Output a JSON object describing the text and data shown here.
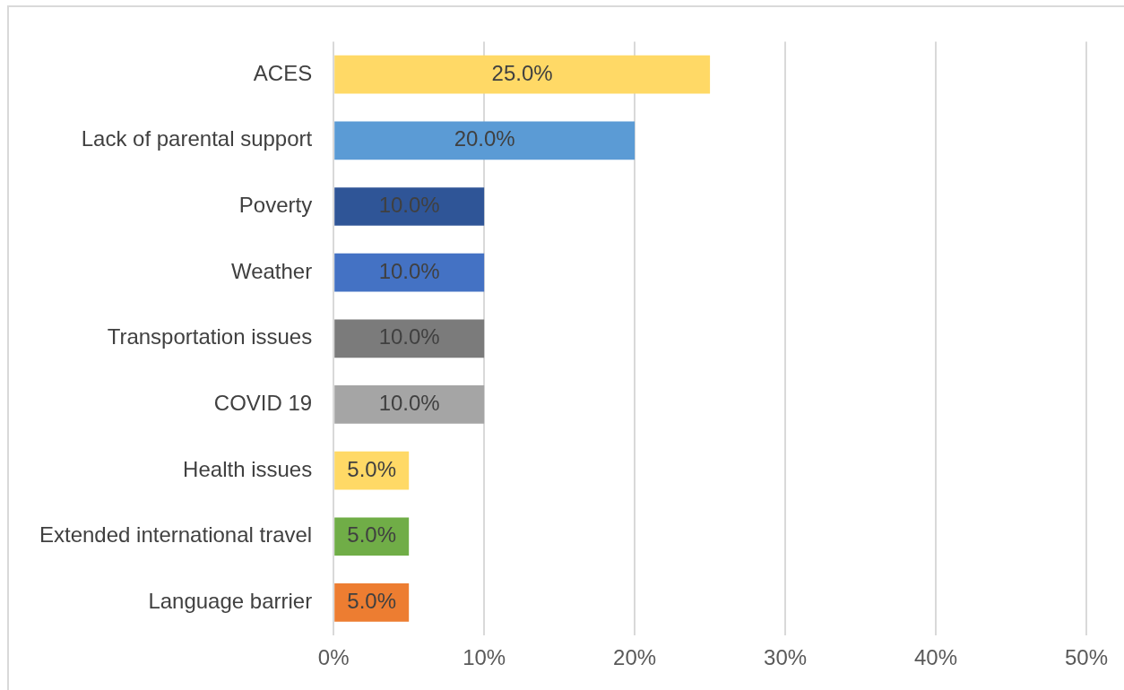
{
  "chart_data": {
    "type": "bar",
    "orientation": "horizontal",
    "categories": [
      "ACES",
      "Lack of parental support",
      "Poverty",
      "Weather",
      "Transportation issues",
      "COVID 19",
      "Health issues",
      "Extended international travel",
      "Language barrier"
    ],
    "values": [
      25,
      20,
      10,
      10,
      10,
      10,
      5,
      5,
      5
    ],
    "colors": [
      "#ffd966",
      "#5b9bd5",
      "#2f5597",
      "#4472c4",
      "#7b7b7b",
      "#a5a5a5",
      "#ffd966",
      "#70ad47",
      "#ed7d31"
    ],
    "value_labels": [
      "25.0%",
      "20.0%",
      "10.0%",
      "10.0%",
      "10.0%",
      "10.0%",
      "5.0%",
      "5.0%",
      "5.0%"
    ],
    "xlim": [
      0,
      50
    ],
    "xticks": [
      {
        "value": 0,
        "label": "0%"
      },
      {
        "value": 10,
        "label": "10%"
      },
      {
        "value": 20,
        "label": "20%"
      },
      {
        "value": 30,
        "label": "30%"
      },
      {
        "value": 40,
        "label": "40%"
      },
      {
        "value": 50,
        "label": "50%"
      }
    ],
    "grid": "x",
    "legend": false
  }
}
